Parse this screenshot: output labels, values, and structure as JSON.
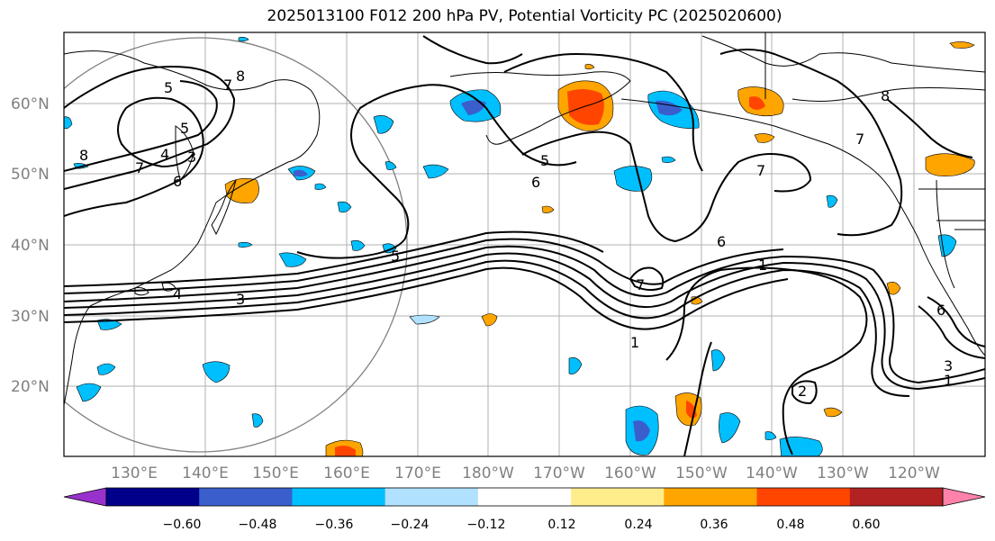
{
  "title": "2025013100 F012 200 hPa PV, Potential Vorticity PC (2025020600)",
  "map": {
    "lat_labels": [
      "60°N",
      "50°N",
      "40°N",
      "30°N",
      "20°N"
    ],
    "lon_labels": [
      "130°E",
      "140°E",
      "150°E",
      "160°E",
      "170°E",
      "180°W",
      "170°W",
      "160°W",
      "150°W",
      "140°W",
      "130°W",
      "120°W"
    ],
    "contour_labels": [
      "5",
      "7",
      "8",
      "3",
      "4",
      "6",
      "5",
      "7",
      "8",
      "6",
      "1",
      "4",
      "3",
      "7",
      "6",
      "5",
      "6",
      "3",
      "1",
      "7",
      "7",
      "8",
      "5",
      "2",
      "1"
    ]
  },
  "colorbar": {
    "ticks": [
      "−0.60",
      "−0.48",
      "−0.36",
      "−0.24",
      "−0.12",
      "0.12",
      "0.24",
      "0.36",
      "0.48",
      "0.60"
    ],
    "colors": [
      "#9932cc",
      "#00008b",
      "#3a5fcd",
      "#00bfff",
      "#b0e2ff",
      "#ffffff",
      "#ffec8b",
      "#ffa500",
      "#ff4500",
      "#b22222",
      "#ff82ab"
    ]
  }
}
